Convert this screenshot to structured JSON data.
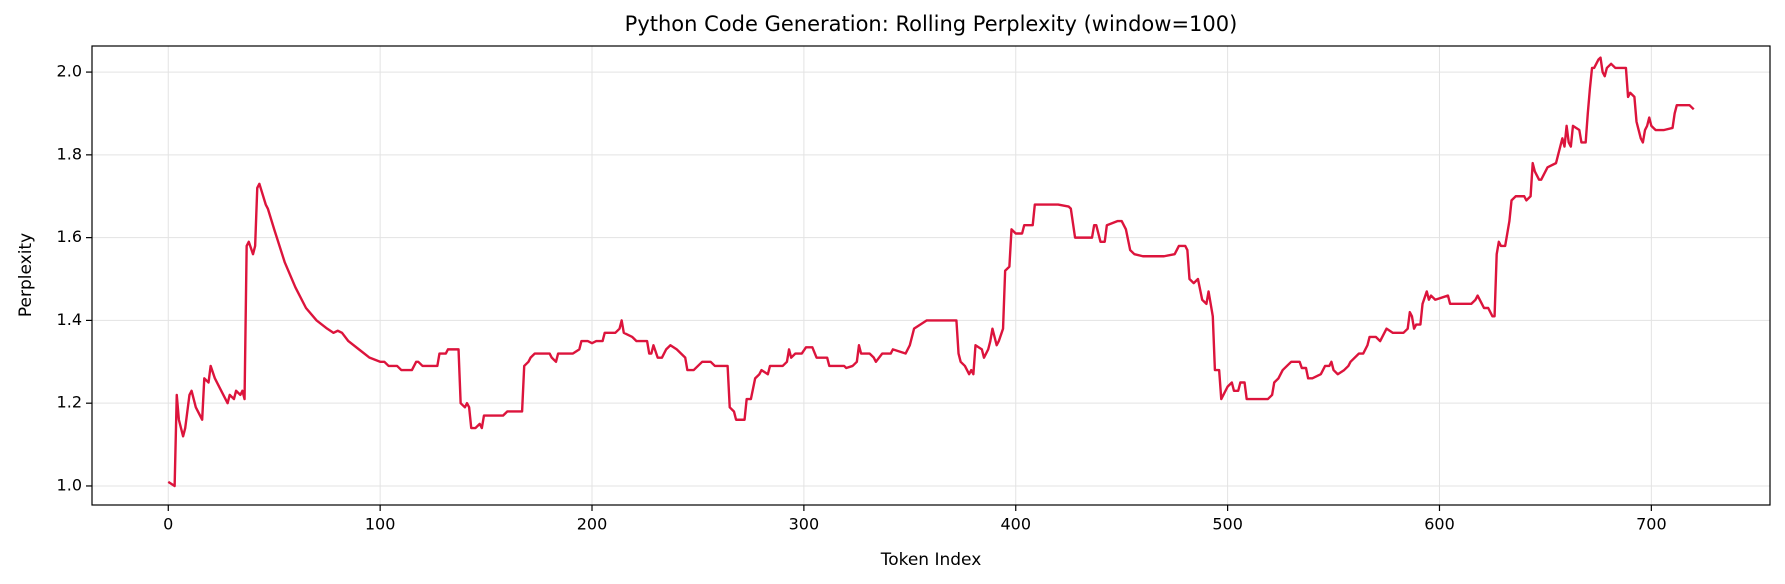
{
  "chart_data": {
    "type": "line",
    "title": "Python Code Generation: Rolling Perplexity (window=100)",
    "xlabel": "Token Index",
    "ylabel": "Perplexity",
    "color": "#dc143c",
    "grid": true,
    "xlim": [
      -36,
      756
    ],
    "ylim": [
      0.954,
      2.063
    ],
    "xticks": [
      0,
      100,
      200,
      300,
      400,
      500,
      600,
      700
    ],
    "yticks": [
      {
        "value": 1.0,
        "label": "1.0"
      },
      1.2,
      1.4,
      1.6,
      1.8,
      {
        "value": 2.0,
        "label": "2.0"
      }
    ],
    "x": [
      0,
      3,
      4,
      5,
      7,
      8,
      10,
      11,
      13,
      15,
      16,
      17,
      19,
      20,
      22,
      25,
      28,
      29,
      31,
      32,
      34,
      35,
      36,
      37,
      38,
      40,
      41,
      42,
      43,
      46,
      47,
      50,
      55,
      60,
      65,
      70,
      75,
      78,
      80,
      82,
      85,
      90,
      95,
      100,
      102,
      104,
      108,
      110,
      115,
      117,
      118,
      120,
      127,
      128,
      131,
      132,
      137,
      138,
      140,
      141,
      142,
      143,
      145,
      147,
      148,
      149,
      158,
      160,
      167,
      168,
      170,
      171,
      173,
      180,
      181,
      183,
      184,
      191,
      194,
      195,
      198,
      200,
      202,
      205,
      206,
      211,
      213,
      214,
      215,
      219,
      221,
      226,
      227,
      228,
      229,
      231,
      233,
      235,
      237,
      240,
      242,
      244,
      245,
      248,
      250,
      252,
      256,
      258,
      264,
      265,
      267,
      268,
      272,
      273,
      275,
      277,
      279,
      280,
      283,
      284,
      290,
      292,
      293,
      294,
      296,
      299,
      301,
      304,
      306,
      311,
      312,
      319,
      320,
      323,
      325,
      326,
      327,
      331,
      333,
      334,
      337,
      341,
      342,
      348,
      350,
      352,
      355,
      358,
      372,
      373,
      374,
      376,
      378,
      379,
      380,
      381,
      384,
      385,
      387,
      388,
      389,
      391,
      392,
      394,
      395,
      397,
      398,
      400,
      403,
      404,
      408,
      409,
      420,
      425,
      426,
      428,
      436,
      437,
      438,
      440,
      442,
      443,
      448,
      450,
      452,
      454,
      456,
      460,
      470,
      475,
      477,
      480,
      481,
      482,
      484,
      486,
      488,
      490,
      491,
      492,
      493,
      494,
      496,
      497,
      498,
      500,
      502,
      503,
      505,
      506,
      508,
      509,
      519,
      521,
      522,
      524,
      526,
      528,
      530,
      534,
      535,
      537,
      538,
      540,
      544,
      546,
      548,
      549,
      550,
      552,
      555,
      557,
      558,
      562,
      564,
      566,
      567,
      570,
      572,
      574,
      575,
      578,
      583,
      585,
      586,
      587,
      588,
      589,
      591,
      592,
      594,
      595,
      596,
      598,
      604,
      605,
      615,
      617,
      618,
      620,
      621,
      623,
      625,
      626,
      627,
      628,
      629,
      631,
      633,
      634,
      636,
      640,
      641,
      643,
      644,
      645,
      647,
      648,
      651,
      655,
      656,
      658,
      659,
      660,
      661,
      662,
      663,
      666,
      667,
      669,
      670,
      671,
      672,
      673,
      675,
      676,
      677,
      678,
      679,
      681,
      683,
      688,
      689,
      690,
      692,
      693,
      695,
      696,
      697,
      698,
      699,
      700,
      702,
      706,
      710,
      711,
      712,
      718,
      720
    ],
    "values": [
      1.01,
      1.0,
      1.22,
      1.16,
      1.12,
      1.14,
      1.22,
      1.23,
      1.19,
      1.17,
      1.16,
      1.26,
      1.25,
      1.29,
      1.26,
      1.23,
      1.2,
      1.22,
      1.21,
      1.23,
      1.22,
      1.23,
      1.21,
      1.58,
      1.59,
      1.56,
      1.58,
      1.72,
      1.73,
      1.68,
      1.67,
      1.62,
      1.54,
      1.48,
      1.43,
      1.4,
      1.38,
      1.37,
      1.375,
      1.37,
      1.35,
      1.33,
      1.31,
      1.3,
      1.3,
      1.29,
      1.29,
      1.28,
      1.28,
      1.3,
      1.3,
      1.29,
      1.29,
      1.32,
      1.32,
      1.33,
      1.33,
      1.2,
      1.19,
      1.2,
      1.19,
      1.14,
      1.14,
      1.15,
      1.14,
      1.17,
      1.17,
      1.18,
      1.18,
      1.29,
      1.3,
      1.31,
      1.32,
      1.32,
      1.31,
      1.3,
      1.32,
      1.32,
      1.33,
      1.35,
      1.35,
      1.345,
      1.35,
      1.35,
      1.37,
      1.37,
      1.38,
      1.4,
      1.37,
      1.36,
      1.35,
      1.35,
      1.32,
      1.32,
      1.34,
      1.31,
      1.31,
      1.33,
      1.34,
      1.33,
      1.32,
      1.31,
      1.28,
      1.28,
      1.29,
      1.3,
      1.3,
      1.29,
      1.29,
      1.19,
      1.18,
      1.16,
      1.16,
      1.21,
      1.21,
      1.26,
      1.27,
      1.28,
      1.27,
      1.29,
      1.29,
      1.3,
      1.33,
      1.31,
      1.32,
      1.32,
      1.335,
      1.335,
      1.31,
      1.31,
      1.29,
      1.29,
      1.285,
      1.29,
      1.3,
      1.34,
      1.32,
      1.32,
      1.31,
      1.3,
      1.32,
      1.32,
      1.33,
      1.32,
      1.34,
      1.38,
      1.39,
      1.4,
      1.4,
      1.32,
      1.3,
      1.29,
      1.27,
      1.28,
      1.27,
      1.34,
      1.33,
      1.31,
      1.33,
      1.35,
      1.38,
      1.34,
      1.35,
      1.38,
      1.52,
      1.53,
      1.62,
      1.61,
      1.61,
      1.63,
      1.63,
      1.68,
      1.68,
      1.675,
      1.67,
      1.6,
      1.6,
      1.63,
      1.63,
      1.59,
      1.59,
      1.63,
      1.64,
      1.64,
      1.62,
      1.57,
      1.56,
      1.555,
      1.555,
      1.56,
      1.58,
      1.58,
      1.57,
      1.5,
      1.49,
      1.5,
      1.45,
      1.44,
      1.47,
      1.44,
      1.41,
      1.28,
      1.28,
      1.21,
      1.22,
      1.24,
      1.25,
      1.23,
      1.23,
      1.25,
      1.25,
      1.21,
      1.21,
      1.22,
      1.25,
      1.26,
      1.28,
      1.29,
      1.3,
      1.3,
      1.285,
      1.285,
      1.26,
      1.26,
      1.27,
      1.29,
      1.29,
      1.3,
      1.28,
      1.27,
      1.28,
      1.29,
      1.3,
      1.32,
      1.32,
      1.34,
      1.36,
      1.36,
      1.35,
      1.37,
      1.38,
      1.37,
      1.37,
      1.38,
      1.42,
      1.41,
      1.38,
      1.39,
      1.39,
      1.44,
      1.47,
      1.45,
      1.46,
      1.45,
      1.46,
      1.44,
      1.44,
      1.45,
      1.46,
      1.44,
      1.43,
      1.43,
      1.41,
      1.41,
      1.56,
      1.59,
      1.58,
      1.58,
      1.64,
      1.69,
      1.7,
      1.7,
      1.69,
      1.7,
      1.78,
      1.76,
      1.74,
      1.74,
      1.77,
      1.78,
      1.8,
      1.84,
      1.82,
      1.87,
      1.83,
      1.82,
      1.87,
      1.86,
      1.83,
      1.83,
      1.9,
      1.96,
      2.01,
      2.01,
      2.03,
      2.035,
      2.0,
      1.99,
      2.01,
      2.02,
      2.01,
      2.01,
      1.94,
      1.95,
      1.94,
      1.88,
      1.84,
      1.83,
      1.86,
      1.87,
      1.89,
      1.87,
      1.86,
      1.86,
      1.865,
      1.9,
      1.92,
      1.92,
      1.91
    ]
  }
}
